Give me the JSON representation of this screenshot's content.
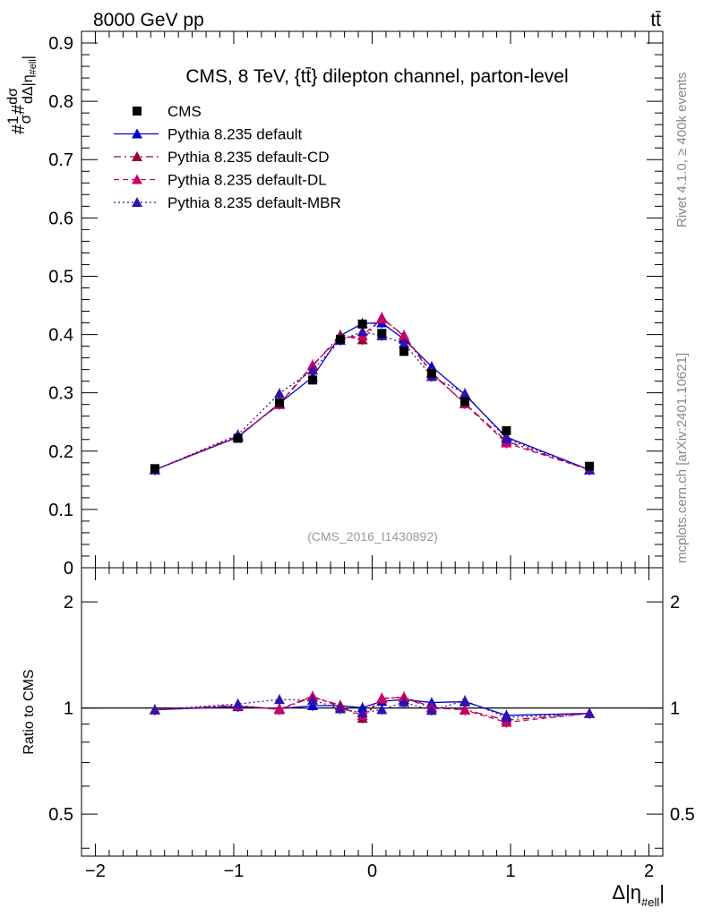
{
  "header": {
    "left": "8000 GeV pp",
    "right": "tt̄"
  },
  "side": {
    "rivet": "Rivet 4.1.0, ≥ 400k events",
    "mcplots": "mcplots.cern.ch [arXiv:2401.10621]"
  },
  "chart_data": {
    "type": "line",
    "title": "CMS, 8 TeV, {tt̄} dilepton channel, parton-level",
    "analysis": "(CMS_2016_I1430892)",
    "xlabel": "Δ|η_#ell|",
    "ylabel": "#frac{1}{#sigma} #frac{dσ}{dΔ|η_#ell|}",
    "ratio_ylabel": "Ratio to CMS",
    "xlim": [
      -2.1,
      2.1
    ],
    "ylim": [
      0,
      0.92
    ],
    "ratio_ylim": [
      0.38,
      2.5
    ],
    "x_ticks": [
      -2,
      -1,
      0,
      1,
      2
    ],
    "x_tick_labels": [
      "−2",
      "−1",
      "0",
      "1",
      "2"
    ],
    "y_ticks": [
      0,
      0.1,
      0.2,
      0.3,
      0.4,
      0.5,
      0.6,
      0.7,
      0.8,
      0.9
    ],
    "y_tick_labels": [
      "0",
      "0.1",
      "0.2",
      "0.3",
      "0.4",
      "0.5",
      "0.6",
      "0.7",
      "0.8",
      "0.9"
    ],
    "ratio_ticks": [
      0.5,
      1,
      2
    ],
    "ratio_tick_labels": [
      "0.5",
      "1",
      "2"
    ],
    "x": [
      -1.57,
      -0.97,
      -0.67,
      -0.43,
      -0.23,
      -0.07,
      0.07,
      0.23,
      0.43,
      0.67,
      0.97,
      1.57
    ],
    "data": {
      "name": "CMS",
      "values": [
        0.17,
        0.222,
        0.283,
        0.322,
        0.392,
        0.418,
        0.402,
        0.371,
        0.333,
        0.285,
        0.235,
        0.174
      ]
    },
    "series": [
      {
        "name": "Pythia 8.235 default",
        "color": "#0000cc",
        "style": "solid",
        "values": [
          0.168,
          0.224,
          0.282,
          0.327,
          0.398,
          0.419,
          0.42,
          0.392,
          0.345,
          0.297,
          0.224,
          0.168
        ]
      },
      {
        "name": "Pythia 8.235 default-CD",
        "color": "#990033",
        "style": "dashdot",
        "values": [
          0.168,
          0.226,
          0.28,
          0.346,
          0.399,
          0.391,
          0.429,
          0.397,
          0.333,
          0.282,
          0.217,
          0.168
        ]
      },
      {
        "name": "Pythia 8.235 default-DL",
        "color": "#cc0066",
        "style": "dashed",
        "values": [
          0.168,
          0.225,
          0.281,
          0.348,
          0.394,
          0.398,
          0.427,
          0.399,
          0.335,
          0.281,
          0.214,
          0.168
        ]
      },
      {
        "name": "Pythia 8.235 default-MBR",
        "color": "#3311aa",
        "style": "dotted",
        "values": [
          0.168,
          0.228,
          0.299,
          0.339,
          0.39,
          0.405,
          0.398,
          0.385,
          0.328,
          0.299,
          0.221,
          0.168
        ]
      }
    ]
  }
}
